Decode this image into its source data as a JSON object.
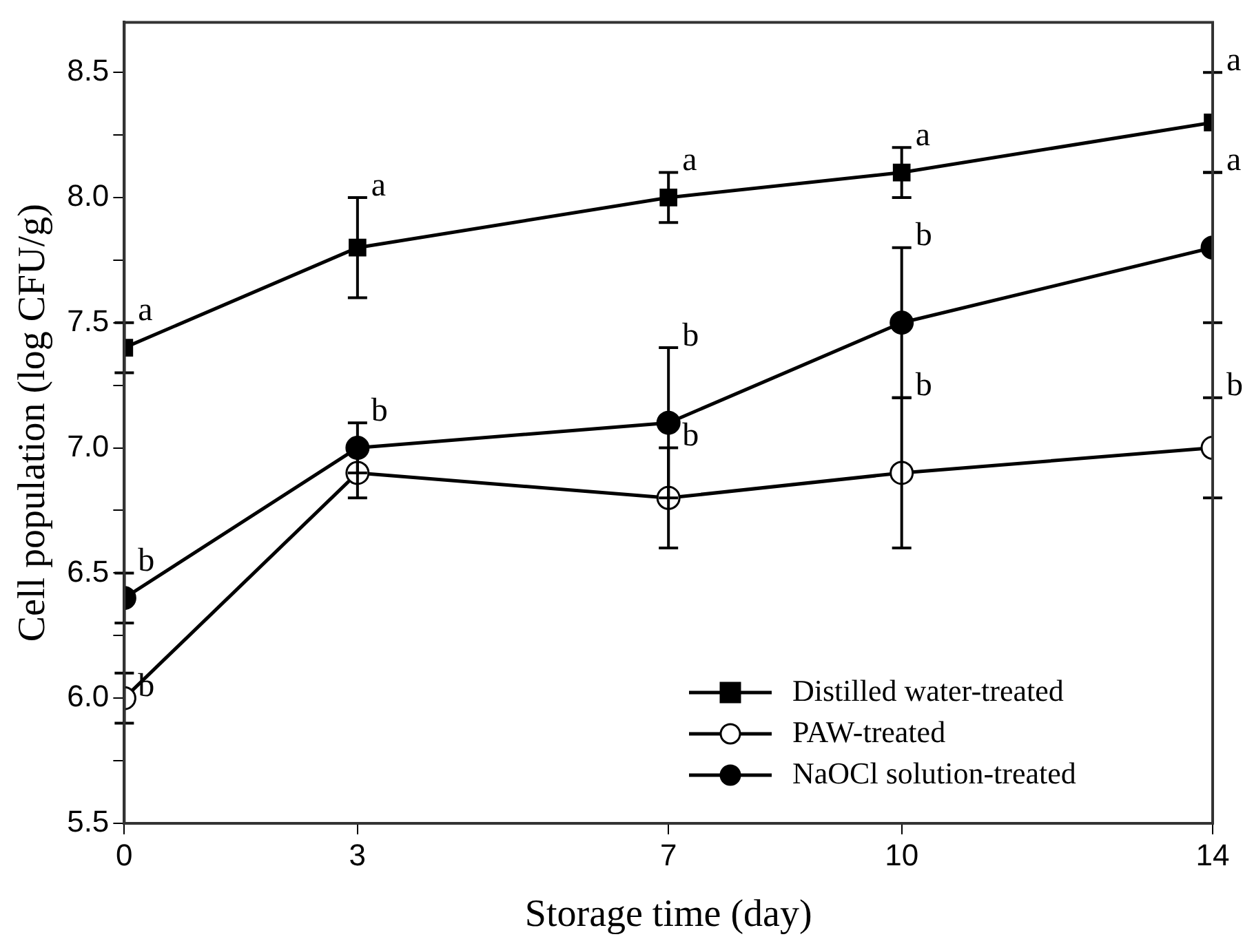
{
  "chart_data": {
    "type": "line",
    "xlabel": "Storage time (day)",
    "ylabel": "Cell population (log CFU/g)",
    "x": [
      0,
      3,
      7,
      10,
      14
    ],
    "xlim": [
      0,
      14
    ],
    "xticks": [
      0,
      3,
      7,
      10,
      14
    ],
    "ylim": [
      5.5,
      8.7
    ],
    "yticks": [
      5.5,
      {
        "value": 5.75,
        "label": null
      },
      {
        "value": 6,
        "label": "6.0"
      },
      {
        "value": 6.25,
        "label": null
      },
      6.5,
      {
        "value": 6.75,
        "label": null
      },
      {
        "value": 7,
        "label": "7.0"
      },
      {
        "value": 7.25,
        "label": null
      },
      7.5,
      {
        "value": 7.75,
        "label": null
      },
      {
        "value": 8,
        "label": "8.0"
      },
      {
        "value": 8.25,
        "label": null
      },
      8.5
    ],
    "grid": false,
    "legend": "bottom right",
    "line_style": "solid",
    "series": [
      {
        "name": "Distilled water-treated",
        "color": "#000000",
        "marker": "square",
        "values": [
          7.4,
          7.8,
          8.0,
          8.1,
          8.3
        ],
        "errors": [
          0.1,
          0.2,
          0.1,
          0.1,
          0.2
        ]
      },
      {
        "name": "PAW-treated",
        "color": "#000000",
        "marker": "circle",
        "colors": [
          "#ffffff",
          "#ffffff",
          "#ffffff",
          "#ffffff",
          "#ffffff"
        ],
        "values": [
          6.0,
          6.9,
          6.8,
          6.9,
          7.0
        ],
        "errors": [
          0.1,
          0.1,
          0.2,
          0.3,
          0.2
        ]
      },
      {
        "name": "NaOCl solution-treated",
        "color": "#000000",
        "marker": "circle",
        "values": [
          6.4,
          7.0,
          7.1,
          7.5,
          7.8
        ],
        "errors": [
          0.1,
          0.1,
          0.3,
          0.3,
          0.3
        ]
      }
    ],
    "annotations": [
      {
        "text": "a",
        "x": 0,
        "y": 7.5
      },
      {
        "text": "a",
        "x": 3,
        "y": 8.0
      },
      {
        "text": "a",
        "x": 7,
        "y": 8.1
      },
      {
        "text": "a",
        "x": 10,
        "y": 8.2
      },
      {
        "text": "a",
        "x": 14,
        "y": 8.5
      },
      {
        "text": "b",
        "x": 0,
        "y": 6.0
      },
      {
        "text": "b",
        "x": 7,
        "y": 7.0
      },
      {
        "text": "b",
        "x": 10,
        "y": 7.2
      },
      {
        "text": "b",
        "x": 14,
        "y": 7.2
      },
      {
        "text": "b",
        "x": 0,
        "y": 6.5
      },
      {
        "text": "b",
        "x": 3,
        "y": 7.1
      },
      {
        "text": "b",
        "x": 7,
        "y": 7.4
      },
      {
        "text": "b",
        "x": 10,
        "y": 7.8
      },
      {
        "text": "a",
        "x": 14,
        "y": 8.1
      }
    ]
  }
}
